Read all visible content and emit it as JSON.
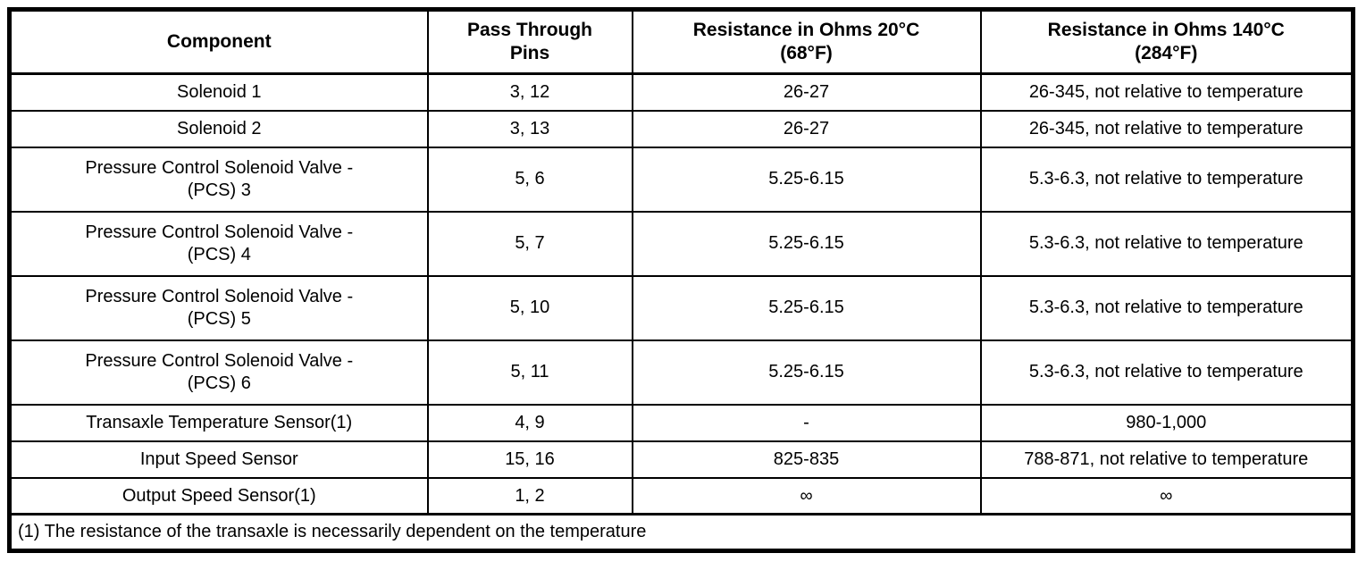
{
  "table": {
    "headers": [
      "Component",
      "Pass Through\nPins",
      "Resistance in Ohms 20°C\n(68°F)",
      "Resistance in Ohms 140°C\n(284°F)"
    ],
    "rows": [
      {
        "component": "Solenoid 1",
        "pins": "3, 12",
        "r20": "26-27",
        "r140": "26-345, not relative to temperature"
      },
      {
        "component": "Solenoid 2",
        "pins": "3, 13",
        "r20": "26-27",
        "r140": "26-345, not relative to temperature"
      },
      {
        "component": "Pressure Control Solenoid Valve -\n(PCS) 3",
        "pins": "5, 6",
        "r20": "5.25-6.15",
        "r140": "5.3-6.3, not relative to temperature"
      },
      {
        "component": "Pressure Control Solenoid Valve -\n(PCS) 4",
        "pins": "5, 7",
        "r20": "5.25-6.15",
        "r140": "5.3-6.3, not relative to temperature"
      },
      {
        "component": "Pressure Control Solenoid Valve -\n(PCS) 5",
        "pins": "5, 10",
        "r20": "5.25-6.15",
        "r140": "5.3-6.3, not relative to temperature"
      },
      {
        "component": "Pressure Control Solenoid Valve -\n(PCS) 6",
        "pins": "5, 11",
        "r20": "5.25-6.15",
        "r140": "5.3-6.3, not relative to temperature"
      },
      {
        "component": "Transaxle Temperature Sensor(1)",
        "pins": "4, 9",
        "r20": "-",
        "r140": "980-1,000"
      },
      {
        "component": "Input Speed Sensor",
        "pins": "15, 16",
        "r20": "825-835",
        "r140": "788-871, not relative to temperature"
      },
      {
        "component": "Output Speed Sensor(1)",
        "pins": "1, 2",
        "r20": "∞",
        "r140": "∞"
      }
    ],
    "footnote": "(1) The resistance of the transaxle is necessarily dependent on the temperature",
    "colors": {
      "border": "#000000",
      "text": "#000000",
      "background": "#ffffff"
    }
  }
}
